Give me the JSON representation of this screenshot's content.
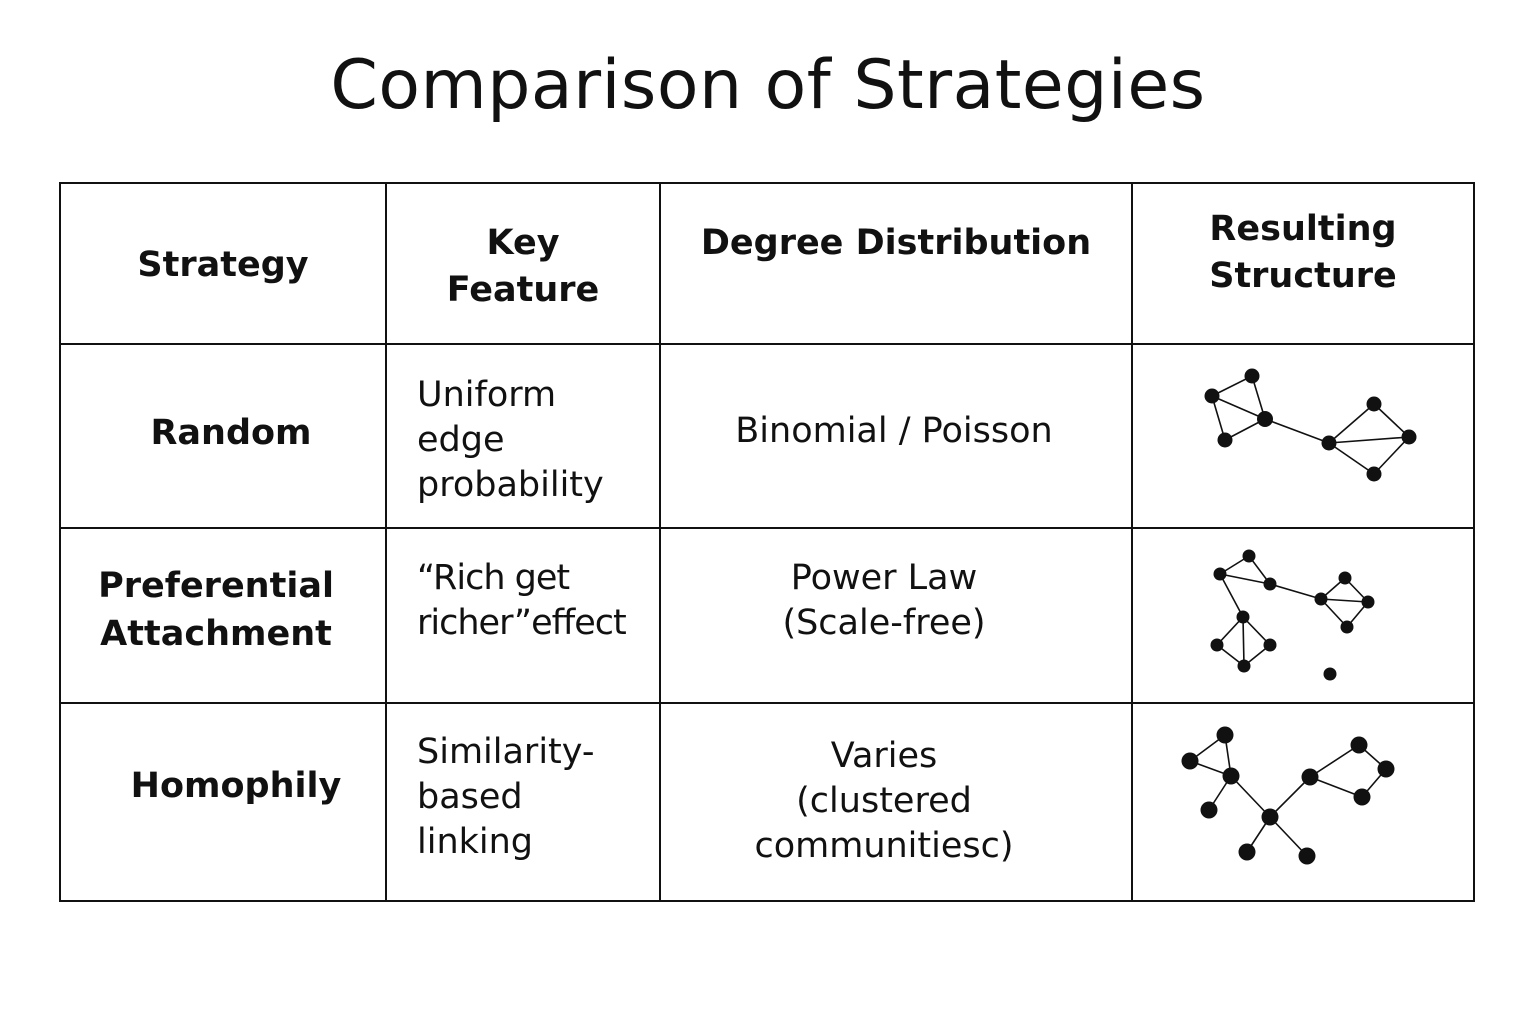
{
  "title": "Comparison of Strategies",
  "headers": {
    "strategy": "Strategy",
    "key_feature": "Key\nFeature",
    "degree_distribution": "Degree  Distribution",
    "resulting_structure": "Resulting\nStructure"
  },
  "rows": [
    {
      "strategy": "Random",
      "key_feature": "Uniform\nedge\nprobability",
      "degree_distribution": "Binomial / Poisson",
      "structure_icon": "random-network-icon"
    },
    {
      "strategy": "Preferential\nAttachment",
      "key_feature": "“Rich get\nricher”effect",
      "degree_distribution": "Power Law\n(Scale-free)",
      "structure_icon": "scale-free-network-icon"
    },
    {
      "strategy": "Homophily",
      "key_feature": "Similarity-\nbased\nlinking",
      "degree_distribution": "Varies\n(clustered\ncommunitiesc)",
      "structure_icon": "clustered-network-icon"
    }
  ]
}
